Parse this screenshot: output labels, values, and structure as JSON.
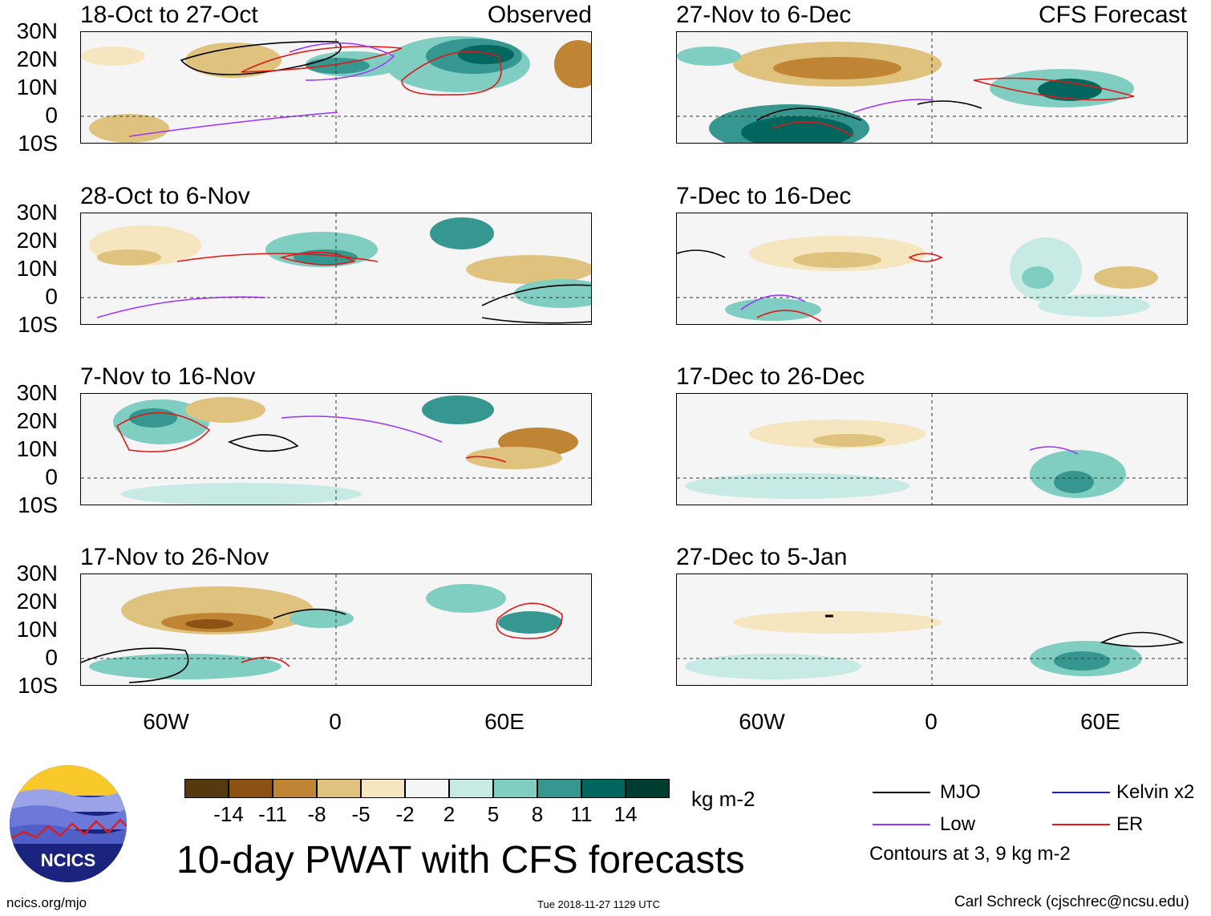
{
  "title": "10-day PWAT with CFS forecasts",
  "observed_label": "Observed",
  "forecast_label": "CFS Forecast",
  "panels_left": [
    {
      "title": "18-Oct to 27-Oct"
    },
    {
      "title": "28-Oct to 6-Nov"
    },
    {
      "title": "7-Nov to 16-Nov"
    },
    {
      "title": "17-Nov to 26-Nov"
    }
  ],
  "panels_right": [
    {
      "title": "27-Nov to 6-Dec"
    },
    {
      "title": "7-Dec to 16-Dec"
    },
    {
      "title": "17-Dec to 26-Dec"
    },
    {
      "title": "27-Dec to 5-Jan"
    }
  ],
  "lat_labels": [
    "30N",
    "20N",
    "10N",
    "0",
    "10S"
  ],
  "lon_labels": [
    "60W",
    "0",
    "60E"
  ],
  "colorbar": {
    "units": "kg m-2",
    "colors": [
      "#553a10",
      "#8c5213",
      "#bf8535",
      "#dfc27d",
      "#f5e6bf",
      "#f5f5f5",
      "#c7eae5",
      "#80cdc1",
      "#35978f",
      "#01665e",
      "#003c30"
    ],
    "ticks": [
      "-14",
      "-11",
      "-8",
      "-5",
      "-2",
      "2",
      "5",
      "8",
      "11",
      "14"
    ]
  },
  "legend": {
    "mjo": {
      "label": "MJO",
      "color": "#000000"
    },
    "low": {
      "label": "Low",
      "color": "#9b30ff"
    },
    "kelvin": {
      "label": "Kelvin x2",
      "color": "#1c1cd6"
    },
    "er": {
      "label": "ER",
      "color": "#e01818"
    },
    "note": "Contours at 3, 9 kg m-2"
  },
  "logo_text": "NCICS",
  "footer": {
    "url": "ncics.org/mjo",
    "timestamp": "Tue 2018-11-27 1129 UTC",
    "credit": "Carl Schreck (cjschrec@ncsu.edu)"
  }
}
